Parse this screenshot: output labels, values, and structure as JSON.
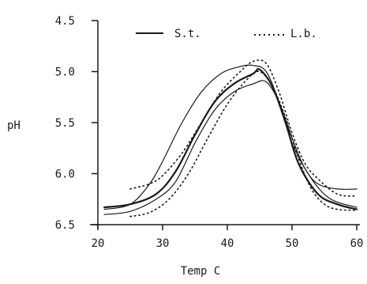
{
  "chart_data": {
    "type": "line",
    "title": "",
    "xlabel": "Temp C",
    "ylabel": "pH",
    "xlim": [
      20,
      60
    ],
    "ylim": [
      4.5,
      6.5
    ],
    "y_inverted": true,
    "x_ticks": [
      20,
      30,
      40,
      50,
      60
    ],
    "y_ticks": [
      4.5,
      5.0,
      5.5,
      6.0,
      6.5
    ],
    "y_tick_labels": [
      "4.5",
      "5.0",
      "5.5",
      "6.0",
      "6.5"
    ],
    "grid": false,
    "legend": {
      "placement": "top",
      "entries": [
        {
          "label": "S.t.",
          "style": "solid"
        },
        {
          "label": "L.b.",
          "style": "dotted"
        }
      ]
    },
    "series": [
      {
        "name": "S.t.",
        "style": "solid",
        "width": 1.2,
        "x": [
          21,
          25,
          28,
          30,
          33,
          36,
          39,
          42,
          44,
          46,
          48,
          50,
          53,
          56,
          60
        ],
        "y": [
          6.35,
          6.3,
          6.1,
          5.88,
          5.5,
          5.2,
          5.02,
          4.95,
          4.94,
          5.0,
          5.3,
          5.7,
          6.05,
          6.25,
          6.33
        ]
      },
      {
        "name": "S.t.",
        "style": "solid",
        "width": 2.2,
        "x": [
          21,
          25,
          29,
          32,
          35,
          38,
          41,
          44,
          45,
          47,
          49,
          51,
          54,
          57,
          60
        ],
        "y": [
          6.33,
          6.3,
          6.2,
          5.98,
          5.62,
          5.3,
          5.12,
          5.02,
          4.98,
          5.15,
          5.5,
          5.9,
          6.2,
          6.3,
          6.35
        ]
      },
      {
        "name": "S.t.",
        "style": "solid",
        "width": 1.2,
        "x": [
          21,
          25,
          29,
          32,
          35,
          38,
          41,
          44,
          46,
          48,
          50,
          52,
          54,
          57,
          60
        ],
        "y": [
          6.4,
          6.37,
          6.25,
          6.08,
          5.7,
          5.38,
          5.2,
          5.12,
          5.1,
          5.3,
          5.65,
          5.95,
          6.1,
          6.15,
          6.15
        ]
      },
      {
        "name": "L.b.",
        "style": "dotted",
        "width": 1.6,
        "x": [
          25,
          28,
          30,
          33,
          36,
          39,
          42,
          44,
          46,
          48,
          50,
          52,
          54,
          57,
          60
        ],
        "y": [
          6.15,
          6.1,
          6.02,
          5.8,
          5.5,
          5.2,
          5.0,
          4.9,
          4.92,
          5.2,
          5.6,
          5.9,
          6.05,
          6.2,
          6.22
        ]
      },
      {
        "name": "L.b.",
        "style": "dotted",
        "width": 1.6,
        "x": [
          25,
          28,
          31,
          34,
          37,
          40,
          43,
          45,
          47,
          49,
          51,
          53,
          55,
          57,
          60
        ],
        "y": [
          6.42,
          6.38,
          6.25,
          6.0,
          5.65,
          5.32,
          5.08,
          5.0,
          5.15,
          5.45,
          5.85,
          6.15,
          6.3,
          6.35,
          6.36
        ]
      }
    ]
  }
}
